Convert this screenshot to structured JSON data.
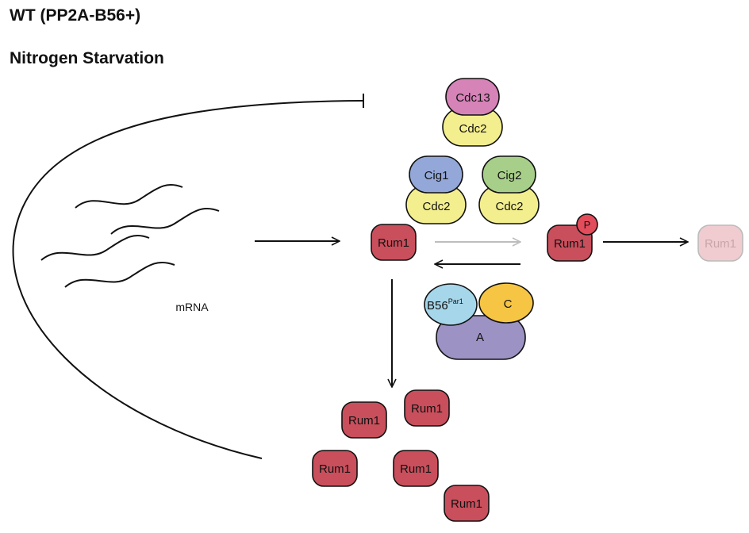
{
  "titles": {
    "line1": "WT (PP2A-B56+)",
    "line2": "Nitrogen Starvation"
  },
  "labels": {
    "mrna": "mRNA",
    "phospho": "P",
    "b56": "B56",
    "b56_sup": "Par1",
    "c": "C",
    "a": "A"
  },
  "complexes": [
    {
      "cyclin": "Cdc13",
      "kinase": "Cdc2",
      "cyclin_color": "#d683b8"
    },
    {
      "cyclin": "Cig1",
      "kinase": "Cdc2",
      "cyclin_color": "#93a8d8"
    },
    {
      "cyclin": "Cig2",
      "kinase": "Cdc2",
      "cyclin_color": "#a8cf8a"
    }
  ],
  "rum1": {
    "label": "Rum1",
    "color": "#c94f5c",
    "faded_color": "#f0ccd0"
  },
  "pp2a": {
    "b56_color": "#a6d6ea",
    "c_color": "#f6c543",
    "a_color": "#9c92c4"
  },
  "kinase_color": "#f3ee8e"
}
